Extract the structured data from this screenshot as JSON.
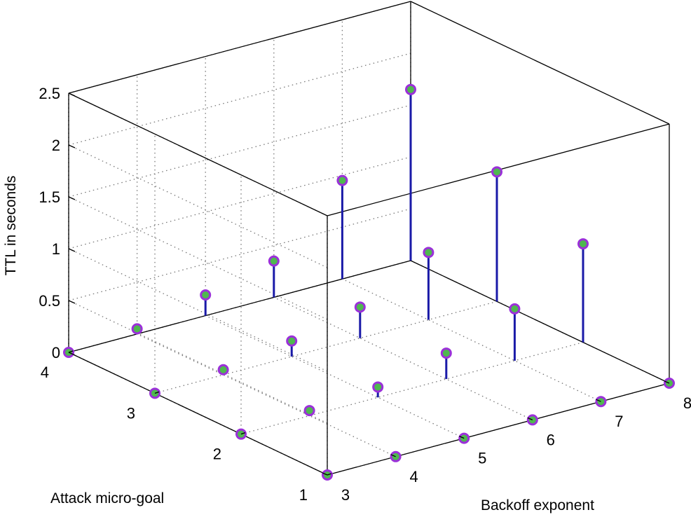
{
  "chart_data": {
    "type": "scatter",
    "subtype": "stem3",
    "title": "",
    "xlabel": "Backoff exponent",
    "ylabel": "Attack micro-goal",
    "zlabel": "TTL in seconds",
    "xlim": [
      3,
      8
    ],
    "ylim": [
      1,
      4
    ],
    "zlim": [
      0,
      2.5
    ],
    "xticks": [
      "3",
      "4",
      "5",
      "6",
      "7",
      "8"
    ],
    "yticks": [
      "1",
      "2",
      "3",
      "4"
    ],
    "zticks": [
      "0",
      "0.5",
      "1",
      "1.5",
      "2",
      "2.5"
    ],
    "grid": true,
    "stem_color": "#1a1aa8",
    "marker_edge_color": "#9b30d9",
    "marker_face_color": "#4fb84f",
    "points": [
      {
        "x": 3,
        "y": 1,
        "z": 0
      },
      {
        "x": 3,
        "y": 2,
        "z": 0
      },
      {
        "x": 3,
        "y": 3,
        "z": 0
      },
      {
        "x": 3,
        "y": 4,
        "z": 0
      },
      {
        "x": 4,
        "y": 1,
        "z": 0
      },
      {
        "x": 5,
        "y": 1,
        "z": 0
      },
      {
        "x": 6,
        "y": 1,
        "z": 0
      },
      {
        "x": 7,
        "y": 1,
        "z": 0
      },
      {
        "x": 8,
        "y": 1,
        "z": 0
      },
      {
        "x": 4,
        "y": 2,
        "z": 0.05
      },
      {
        "x": 4,
        "y": 3,
        "z": 0.05
      },
      {
        "x": 4,
        "y": 4,
        "z": 0.05
      },
      {
        "x": 5,
        "y": 2,
        "z": 0.1
      },
      {
        "x": 5,
        "y": 3,
        "z": 0.15
      },
      {
        "x": 5,
        "y": 4,
        "z": 0.2
      },
      {
        "x": 6,
        "y": 2,
        "z": 0.25
      },
      {
        "x": 6,
        "y": 3,
        "z": 0.3
      },
      {
        "x": 6,
        "y": 4,
        "z": 0.35
      },
      {
        "x": 7,
        "y": 2,
        "z": 0.5
      },
      {
        "x": 7,
        "y": 3,
        "z": 0.65
      },
      {
        "x": 7,
        "y": 4,
        "z": 0.95
      },
      {
        "x": 8,
        "y": 2,
        "z": 0.95
      },
      {
        "x": 8,
        "y": 3,
        "z": 1.25
      },
      {
        "x": 8,
        "y": 4,
        "z": 1.65
      }
    ]
  }
}
